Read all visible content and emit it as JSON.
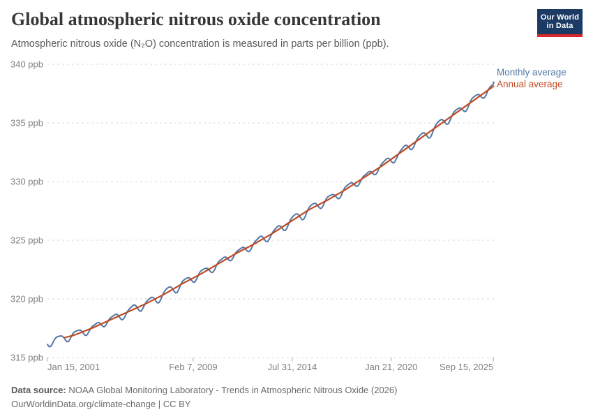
{
  "header": {
    "title": "Global atmospheric nitrous oxide concentration",
    "subtitle": "Atmospheric nitrous oxide (N₂O) concentration is measured in parts per billion (ppb).",
    "logo": {
      "line1": "Our World",
      "line2": "in Data",
      "bg_color": "#1b3a64",
      "accent_color": "#d7282e"
    }
  },
  "footer": {
    "source_prefix": "Data source:",
    "source_text": " NOAA Global Monitoring Laboratory - Trends in Atmospheric Nitrous Oxide (2026)",
    "license_line": "OurWorldinData.org/climate-change | CC BY"
  },
  "chart_data": {
    "type": "line",
    "title": "Global atmospheric nitrous oxide concentration",
    "unit": "ppb",
    "grid": "dashed-horizontal",
    "legend_position": "right-of-line-ends",
    "x_axis": {
      "t_min": 2001.04,
      "t_max": 2025.71,
      "ticks": [
        {
          "label": "Jan 15, 2001",
          "t": 2001.04,
          "anchor": "start"
        },
        {
          "label": "Feb 7, 2009",
          "t": 2009.1,
          "anchor": "middle"
        },
        {
          "label": "Jul 31, 2014",
          "t": 2014.58,
          "anchor": "middle"
        },
        {
          "label": "Jan 21, 2020",
          "t": 2020.05,
          "anchor": "middle"
        },
        {
          "label": "Sep 15, 2025",
          "t": 2025.7,
          "anchor": "end"
        }
      ]
    },
    "y_axis": {
      "min": 315,
      "max": 340,
      "suffix": " ppb",
      "ticks": [
        315,
        320,
        325,
        330,
        335,
        340
      ]
    },
    "series": [
      {
        "name": "Monthly average",
        "kind": "monthly",
        "color": "#5277a4",
        "stroke_width": 2,
        "start_value": 316.4,
        "end_value": 338.9,
        "step_years": 0.08333,
        "seasonal": {
          "amp1": 0.36,
          "phase1": 0.45,
          "amp2": 0.09,
          "phase2": 0.3,
          "jitter_amp1": 0.05,
          "jitter_freq1": 7.13,
          "jitter_amp2": 0.04,
          "jitter_freq2": 3.7
        }
      },
      {
        "name": "Annual average",
        "kind": "annual",
        "color": "#c04a24",
        "stroke_width": 2.2,
        "plot_start_t": 2002.0,
        "years": [
          2001,
          2002,
          2003,
          2004,
          2005,
          2006,
          2007,
          2008,
          2009,
          2010,
          2011,
          2012,
          2013,
          2014,
          2015,
          2016,
          2017,
          2018,
          2019,
          2020,
          2021,
          2022,
          2023,
          2024,
          2025
        ],
        "values": [
          316.5,
          316.9,
          317.5,
          318.2,
          318.9,
          319.6,
          320.4,
          321.3,
          322.1,
          323.0,
          323.9,
          324.7,
          325.6,
          326.6,
          327.6,
          328.4,
          329.3,
          330.3,
          331.3,
          332.4,
          333.5,
          334.6,
          335.7,
          336.8,
          337.9
        ]
      }
    ]
  }
}
